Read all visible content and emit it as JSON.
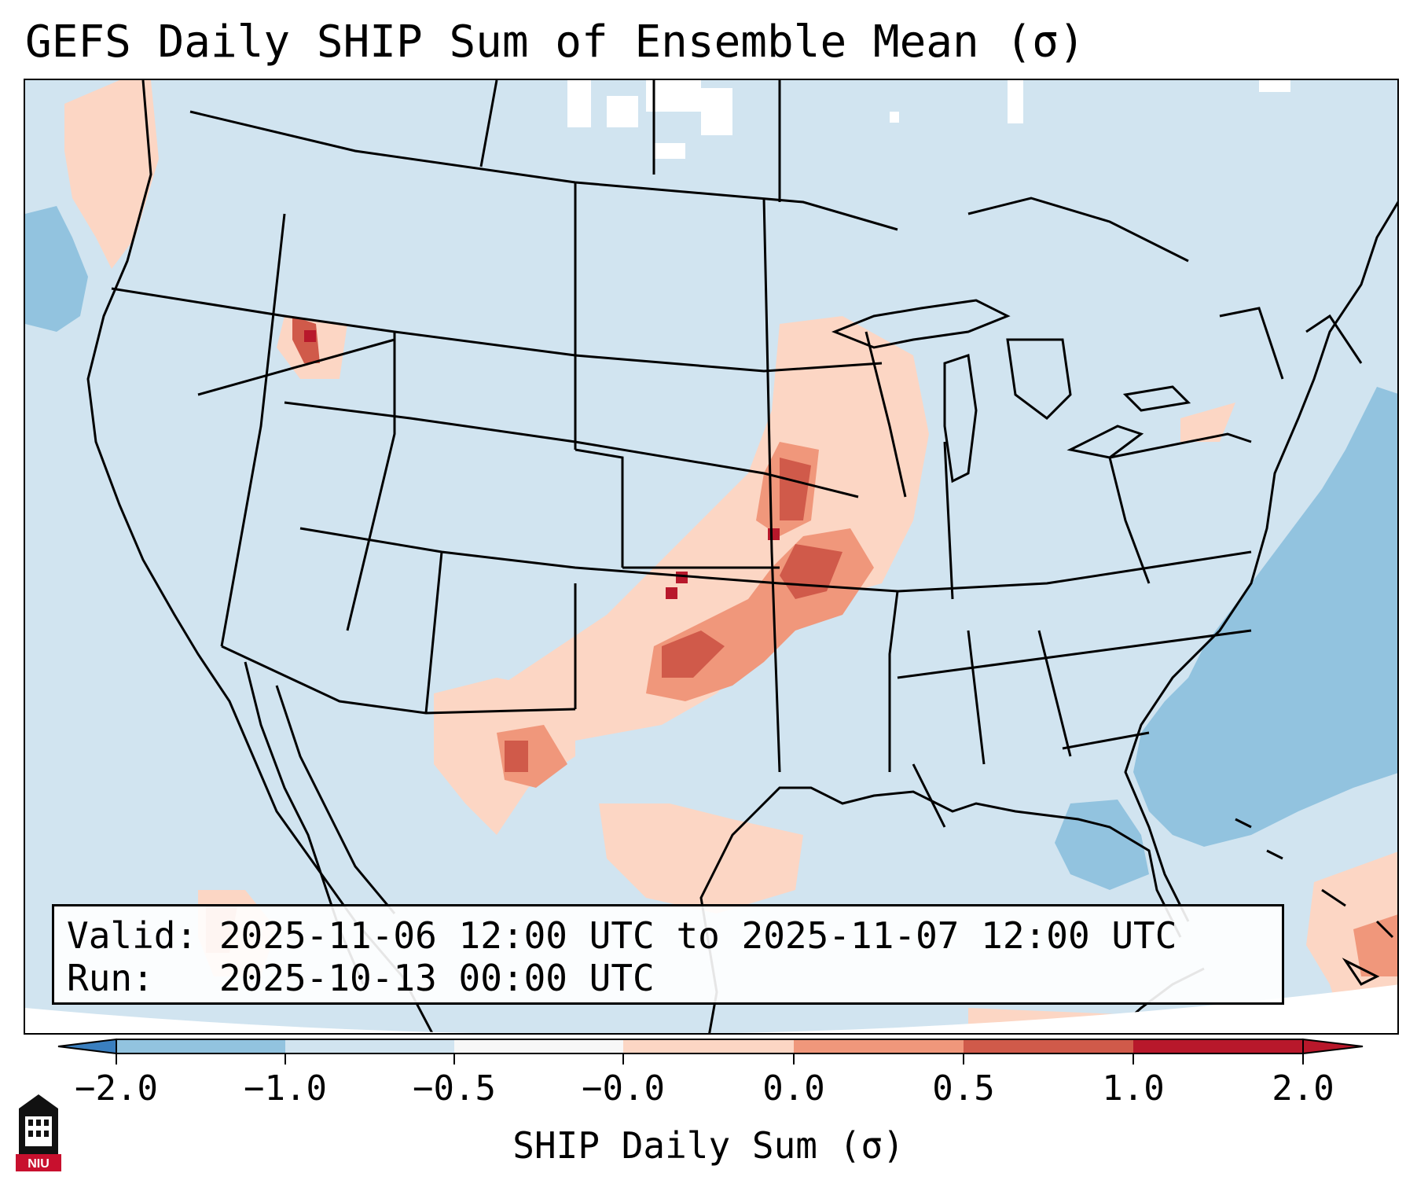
{
  "title": "GEFS Daily SHIP Sum of Ensemble Mean (σ)",
  "info": {
    "valid_line": "Valid: 2025-11-06 12:00 UTC to 2025-11-07 12:00 UTC",
    "run_line": "Run:   2025-10-13 00:00 UTC"
  },
  "colorbar": {
    "label": "SHIP Daily Sum (σ)",
    "ticks": [
      "−2.0",
      "−1.0",
      "−0.5",
      "−0.0",
      "0.0",
      "0.5",
      "1.0",
      "2.0"
    ],
    "colors": [
      "#3a7fbf",
      "#92c3df",
      "#d1e4f0",
      "#f7f7f7",
      "#fcd6c4",
      "#f0977b",
      "#d05a4a",
      "#b8182b"
    ]
  },
  "colors": {
    "ocean_background": "#d1e4f0",
    "negative_field": "#92c3df",
    "positive_light": "#fcd6c4",
    "positive_mid": "#f0977b",
    "positive_strong": "#d05a4a",
    "positive_max": "#b8182b",
    "borders": "#000000"
  },
  "logo": {
    "text": "NIU",
    "icon": "university-tower-icon"
  }
}
